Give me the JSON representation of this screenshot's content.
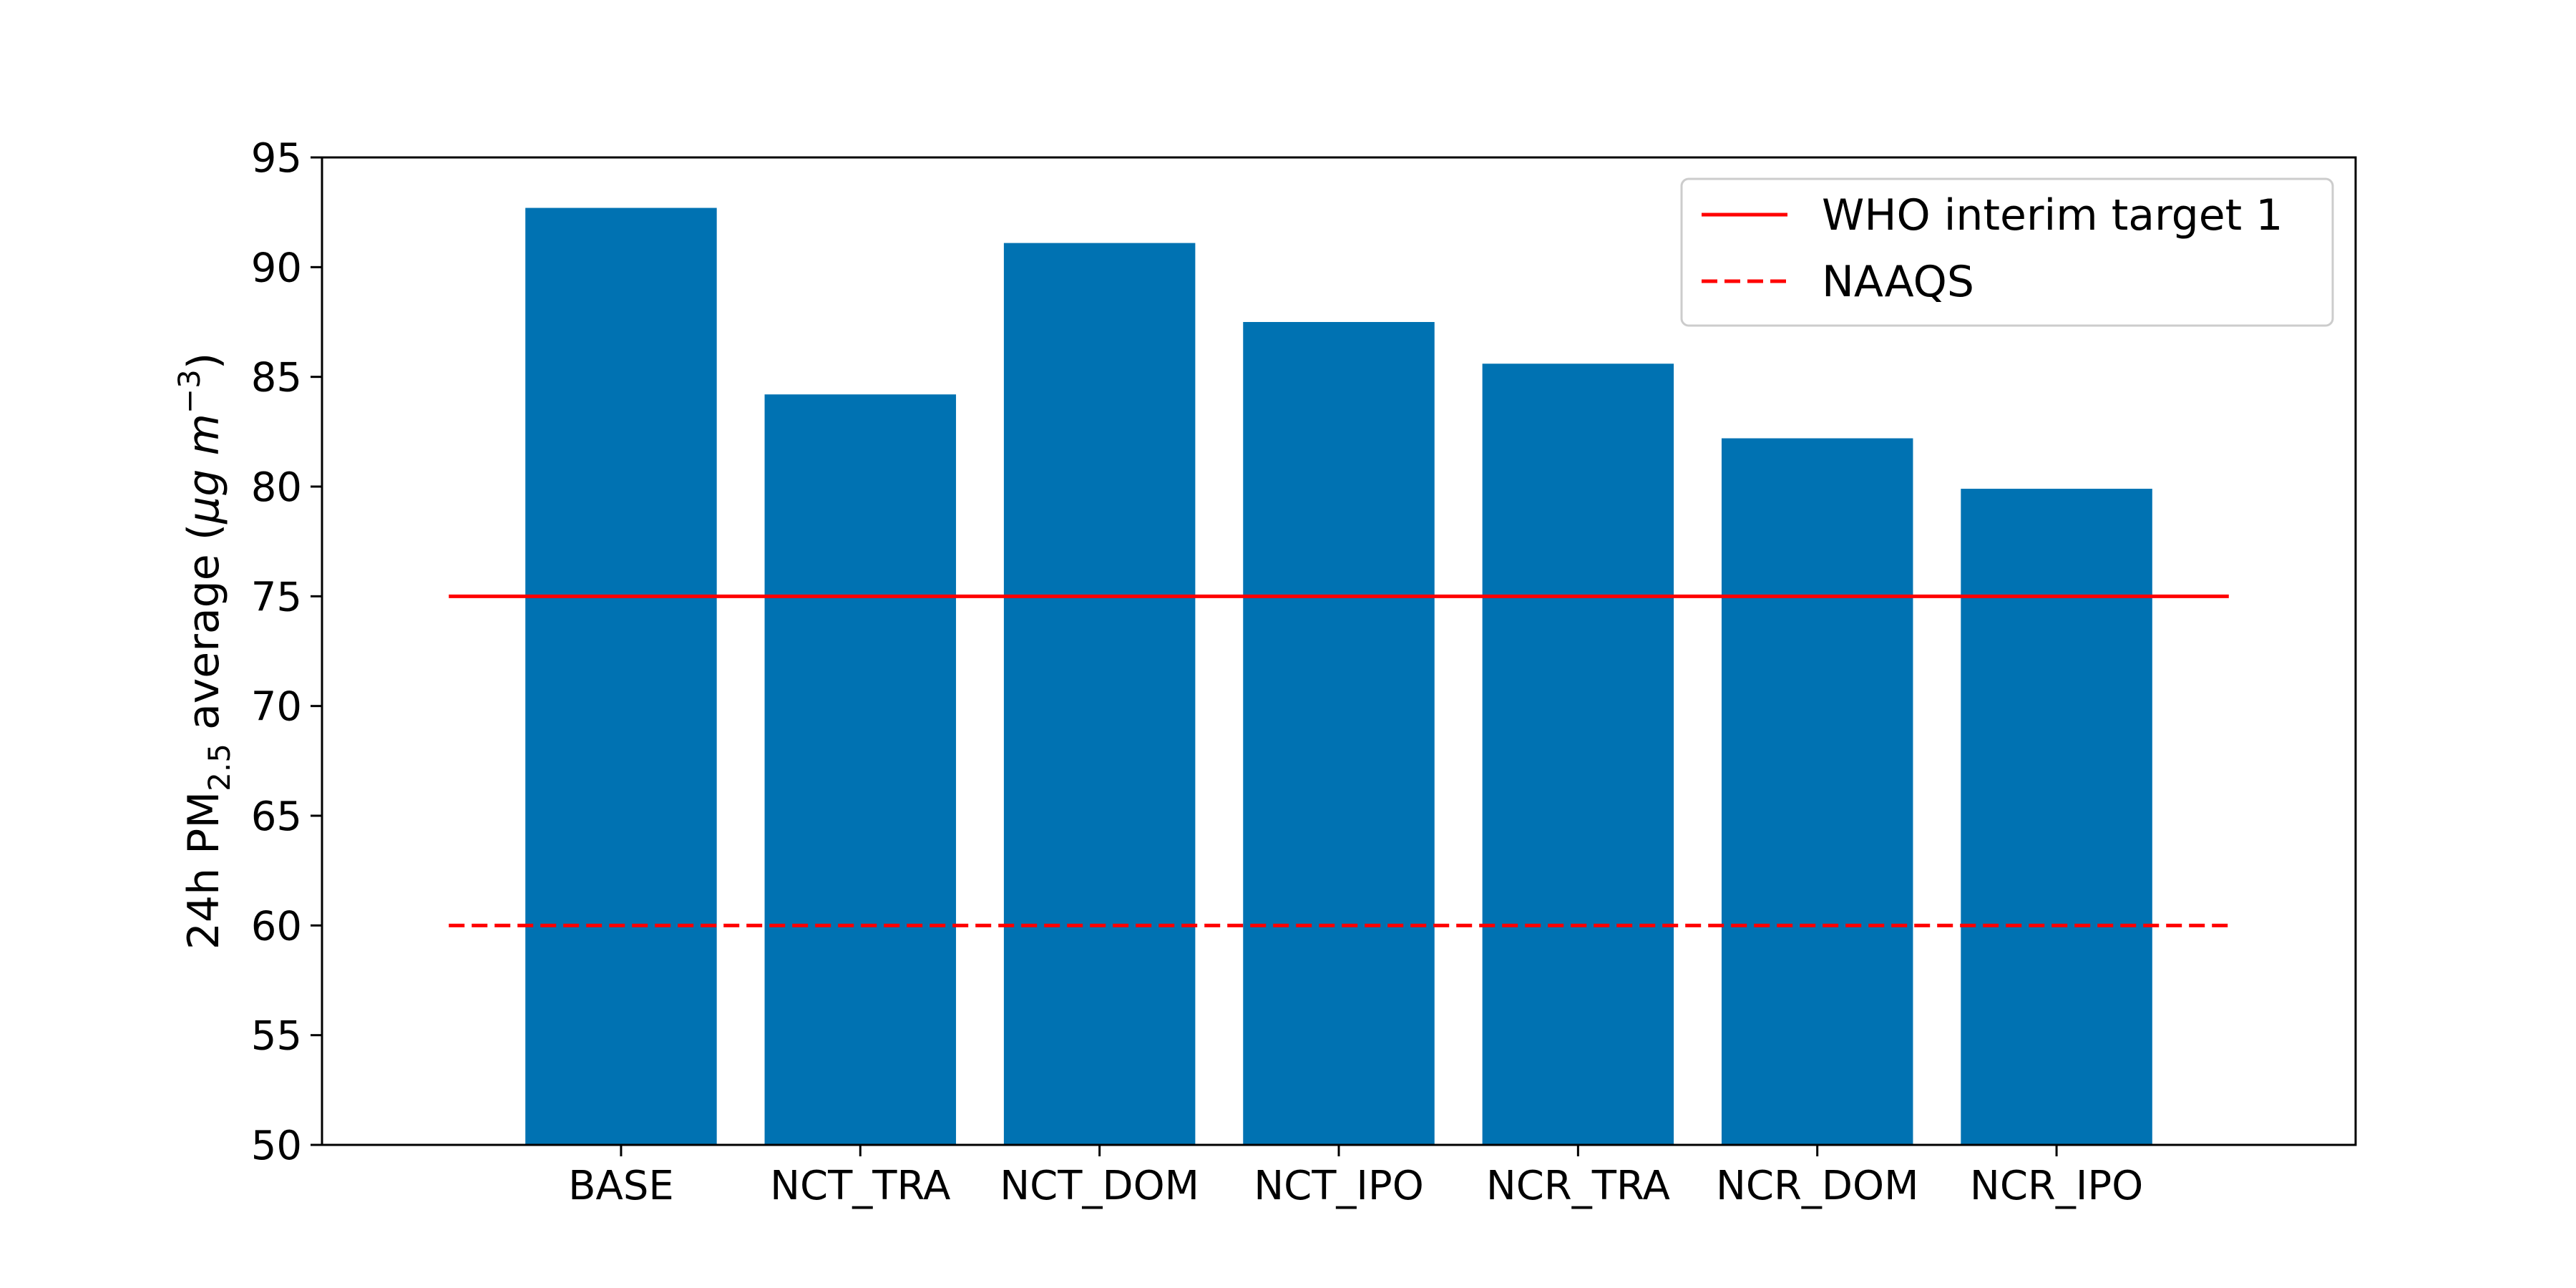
{
  "chart_data": {
    "type": "bar",
    "title": "",
    "xlabel": "",
    "ylabel": {
      "prefix": "24h PM",
      "subscript": "2.5",
      "middle": " average (",
      "unit_mu": "μg",
      "unit_space": " ",
      "unit_m": "m",
      "unit_exp": "−3",
      "suffix": ")"
    },
    "categories": [
      "BASE",
      "NCT_TRA",
      "NCT_DOM",
      "NCT_IPO",
      "NCR_TRA",
      "NCR_DOM",
      "NCR_IPO"
    ],
    "values": [
      92.7,
      84.2,
      91.1,
      87.5,
      85.6,
      82.2,
      79.9
    ],
    "ylim": [
      50,
      95
    ],
    "yticks": [
      50,
      55,
      60,
      65,
      70,
      75,
      80,
      85,
      90,
      95
    ],
    "bar_color": "#0072b2",
    "grid": false,
    "legend_position": "top-right",
    "reference_lines": [
      {
        "name": "WHO interim target 1",
        "value": 75,
        "style": "solid",
        "color": "#ff0000"
      },
      {
        "name": "NAAQS",
        "value": 60,
        "style": "dashed",
        "color": "#ff0000"
      }
    ]
  }
}
